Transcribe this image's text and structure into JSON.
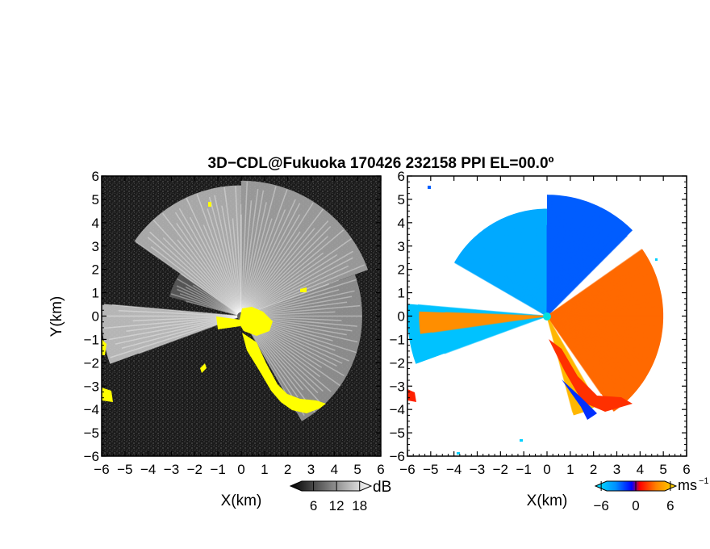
{
  "figure": {
    "title": "3D−CDL@Fukuoka 170426 232158 PPI EL=00.0º"
  },
  "chart_data": [
    {
      "type": "heatmap",
      "panel": "left",
      "xlabel": "X(km)",
      "ylabel": "Y(km)",
      "xlim": [
        -6,
        6
      ],
      "ylim": [
        -6,
        6
      ],
      "x_ticks": [
        "−6",
        "−5",
        "−4",
        "−3",
        "−2",
        "−1",
        "0",
        "1",
        "2",
        "3",
        "4",
        "5",
        "6"
      ],
      "y_ticks": [
        "6",
        "5",
        "4",
        "3",
        "2",
        "1",
        "0",
        "−1",
        "−2",
        "−3",
        "−4",
        "−5",
        "−6"
      ],
      "background_color": "#1e1e1e",
      "echo_color": "#ffffff",
      "mask_color": "#ffff00",
      "colorbar": {
        "unit": "dB",
        "ticks": [
          "6",
          "12",
          "18"
        ],
        "range": [
          0,
          21
        ]
      },
      "sectors": [
        {
          "az_from": 250,
          "az_to": 275,
          "range_km": 6.0,
          "level": 0.78
        },
        {
          "az_from": 285,
          "az_to": 305,
          "range_km": 3.2,
          "level": 0.25
        },
        {
          "az_from": 305,
          "az_to": 360,
          "range_km": 5.6,
          "level": 0.7
        },
        {
          "az_from": 0,
          "az_to": 70,
          "range_km": 5.8,
          "level": 0.62
        },
        {
          "az_from": 70,
          "az_to": 150,
          "range_km": 5.2,
          "level": 0.55
        }
      ]
    },
    {
      "type": "heatmap",
      "panel": "right",
      "xlabel": "X(km)",
      "ylabel": "",
      "xlim": [
        -6,
        6
      ],
      "ylim": [
        -6,
        6
      ],
      "x_ticks": [
        "−6",
        "−5",
        "−4",
        "−3",
        "−2",
        "−1",
        "0",
        "1",
        "2",
        "3",
        "4",
        "5",
        "6"
      ],
      "y_ticks": [
        "6",
        "5",
        "4",
        "3",
        "2",
        "1",
        "0",
        "−1",
        "−2",
        "−3",
        "−4",
        "−5",
        "−6"
      ],
      "colorbar": {
        "unit": "ms",
        "unit_exp": "−1",
        "ticks": [
          "−6",
          "0",
          "6"
        ],
        "range": [
          -7,
          7
        ]
      },
      "sectors": [
        {
          "az_from": 250,
          "az_to": 275,
          "range_km": 6.0,
          "velocity": -5.5
        },
        {
          "az_from": 262,
          "az_to": 272,
          "range_km": 5.5,
          "velocity": 4.0
        },
        {
          "az_from": 300,
          "az_to": 360,
          "range_km": 4.6,
          "velocity": -4.5
        },
        {
          "az_from": 0,
          "az_to": 45,
          "range_km": 5.2,
          "velocity": -2.5
        },
        {
          "az_from": 55,
          "az_to": 145,
          "range_km": 5.0,
          "velocity": 3.0
        },
        {
          "az_from": 150,
          "az_to": 165,
          "range_km": 4.4,
          "velocity": 5.5
        }
      ]
    }
  ]
}
